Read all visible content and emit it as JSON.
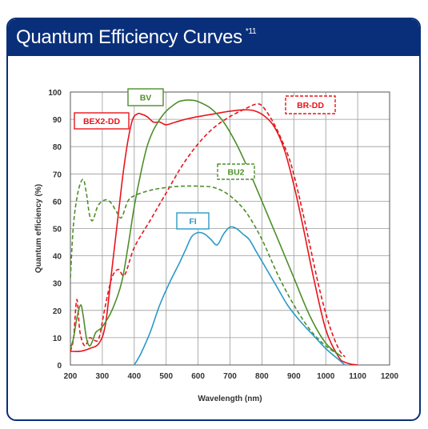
{
  "header": {
    "title": "Quantum Efficiency Curves",
    "note_mark": "*11"
  },
  "colors": {
    "header_bg": "#0a2f7a",
    "bex2dd": "#e8151b",
    "brdd": "#e8151b",
    "bv": "#4d8f2a",
    "bu2": "#4d8f2a",
    "fi": "#2a9ac8"
  },
  "chart_data": {
    "type": "line",
    "xlabel": "Wavelength (nm)",
    "ylabel": "Quantum efficiency (%)",
    "xlim": [
      200,
      1200
    ],
    "ylim": [
      0,
      100
    ],
    "x_ticks": [
      200,
      300,
      400,
      500,
      600,
      700,
      800,
      900,
      1000,
      1100,
      1200
    ],
    "y_ticks": [
      0,
      10,
      20,
      30,
      40,
      50,
      60,
      70,
      80,
      90,
      100
    ],
    "grid": true,
    "series": [
      {
        "name": "BEX2-DD",
        "style": "solid",
        "color": "#e8151b",
        "x": [
          200,
          230,
          260,
          290,
          310,
          330,
          350,
          365,
          380,
          395,
          410,
          420,
          440,
          460,
          480,
          500,
          530,
          560,
          600,
          650,
          700,
          750,
          780,
          810,
          840,
          870,
          900,
          930,
          960,
          1000,
          1040,
          1060,
          1080,
          1100
        ],
        "y": [
          5,
          5,
          6,
          8,
          15,
          35,
          55,
          70,
          82,
          90,
          92,
          92,
          91,
          89,
          89,
          88,
          89,
          90,
          91,
          92,
          93,
          93.5,
          93,
          91,
          87,
          79,
          66,
          50,
          33,
          13,
          3,
          1,
          0.3,
          0
        ]
      },
      {
        "name": "BR-DD",
        "style": "dashed",
        "color": "#e8151b",
        "x": [
          200,
          210,
          220,
          230,
          245,
          260,
          275,
          290,
          310,
          330,
          350,
          370,
          400,
          450,
          500,
          550,
          600,
          650,
          700,
          750,
          780,
          800,
          830,
          860,
          890,
          920,
          950,
          980,
          1010,
          1040,
          1060
        ],
        "y": [
          5,
          10,
          24,
          12,
          7,
          10,
          9,
          10,
          22,
          32,
          35,
          33,
          43,
          53,
          63,
          73,
          81,
          87,
          91,
          94,
          95.5,
          95,
          90,
          83,
          74,
          60,
          44,
          28,
          15,
          6,
          3
        ]
      },
      {
        "name": "BV",
        "style": "solid",
        "color": "#4d8f2a",
        "x": [
          200,
          210,
          220,
          232,
          240,
          250,
          260,
          270,
          280,
          300,
          330,
          360,
          380,
          400,
          420,
          440,
          460,
          480,
          500,
          520,
          540,
          560,
          580,
          600,
          640,
          680,
          720,
          760,
          800,
          850,
          900,
          950,
          1000,
          1050
        ],
        "y": [
          6,
          10,
          17,
          22,
          18,
          10,
          7,
          9,
          12,
          14,
          20,
          30,
          43,
          58,
          70,
          80,
          86,
          90,
          93,
          95,
          96.5,
          97,
          97,
          96.5,
          94,
          89,
          81,
          71,
          60,
          46,
          32,
          18,
          8,
          3
        ]
      },
      {
        "name": "BU2",
        "style": "dashed",
        "color": "#4d8f2a",
        "x": [
          200,
          210,
          225,
          240,
          250,
          260,
          270,
          285,
          300,
          315,
          330,
          345,
          360,
          380,
          400,
          450,
          500,
          550,
          600,
          650,
          700,
          750,
          800,
          850,
          900,
          950,
          1000,
          1050
        ],
        "y": [
          32,
          52,
          64,
          68,
          63,
          55,
          53,
          58,
          60,
          60.5,
          59,
          56,
          54,
          60,
          62,
          64,
          65,
          65.5,
          65.5,
          65,
          62,
          56,
          46,
          33,
          22,
          13,
          7,
          3
        ]
      },
      {
        "name": "FI",
        "style": "solid",
        "color": "#2a9ac8",
        "x": [
          400,
          420,
          450,
          480,
          510,
          540,
          560,
          580,
          600,
          620,
          640,
          660,
          680,
          700,
          720,
          740,
          760,
          780,
          800,
          840,
          880,
          920,
          960,
          1000,
          1040,
          1060
        ],
        "y": [
          0,
          4,
          12,
          22,
          30,
          37,
          42,
          47,
          48.5,
          48,
          46,
          44,
          48,
          50.5,
          50,
          48,
          46,
          42,
          38,
          30,
          22,
          16,
          11,
          6,
          2,
          0
        ]
      }
    ],
    "labels": [
      {
        "text": "BEX2-DD",
        "series": "BEX2-DD"
      },
      {
        "text": "BR-DD",
        "series": "BR-DD"
      },
      {
        "text": "BV",
        "series": "BV"
      },
      {
        "text": "BU2",
        "series": "BU2"
      },
      {
        "text": "FI",
        "series": "FI"
      }
    ]
  }
}
